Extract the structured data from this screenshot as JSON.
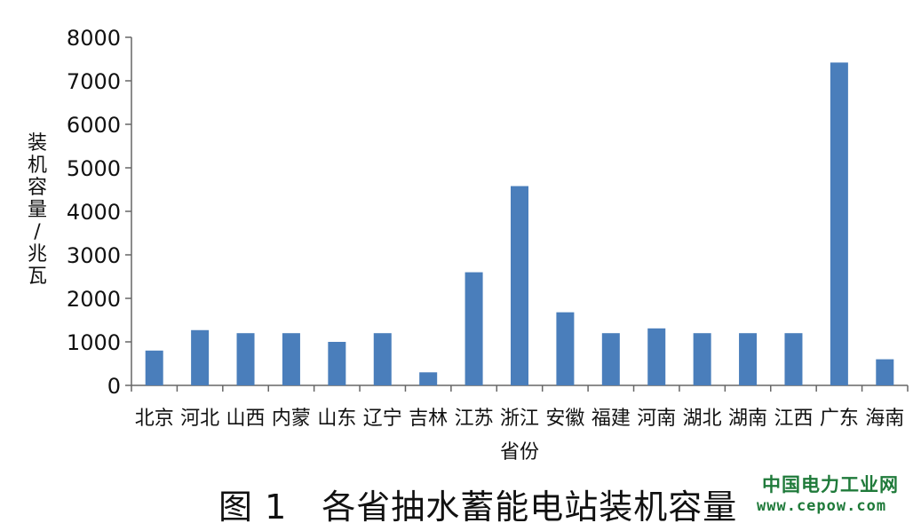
{
  "chart_data": {
    "type": "bar",
    "categories": [
      "北京",
      "河北",
      "山西",
      "内蒙",
      "山东",
      "辽宁",
      "吉林",
      "江苏",
      "浙江",
      "安徽",
      "福建",
      "河南",
      "湖北",
      "湖南",
      "江西",
      "广东",
      "海南"
    ],
    "values": [
      800,
      1270,
      1200,
      1200,
      1000,
      1200,
      300,
      2600,
      4580,
      1680,
      1200,
      1310,
      1200,
      1200,
      1200,
      7420,
      600
    ],
    "xlabel": "省份",
    "ylabel": "装机容量/兆瓦",
    "ylim": [
      0,
      8000
    ],
    "yticks": [
      0,
      1000,
      2000,
      3000,
      4000,
      5000,
      6000,
      7000,
      8000
    ],
    "bar_color": "#4a7ebb",
    "grid": false
  },
  "caption": "图 1　各省抽水蓄能电站装机容量",
  "watermark": {
    "name": "中国电力工业网",
    "url": "www.cepow.com",
    "color": "#1f7a3a"
  }
}
